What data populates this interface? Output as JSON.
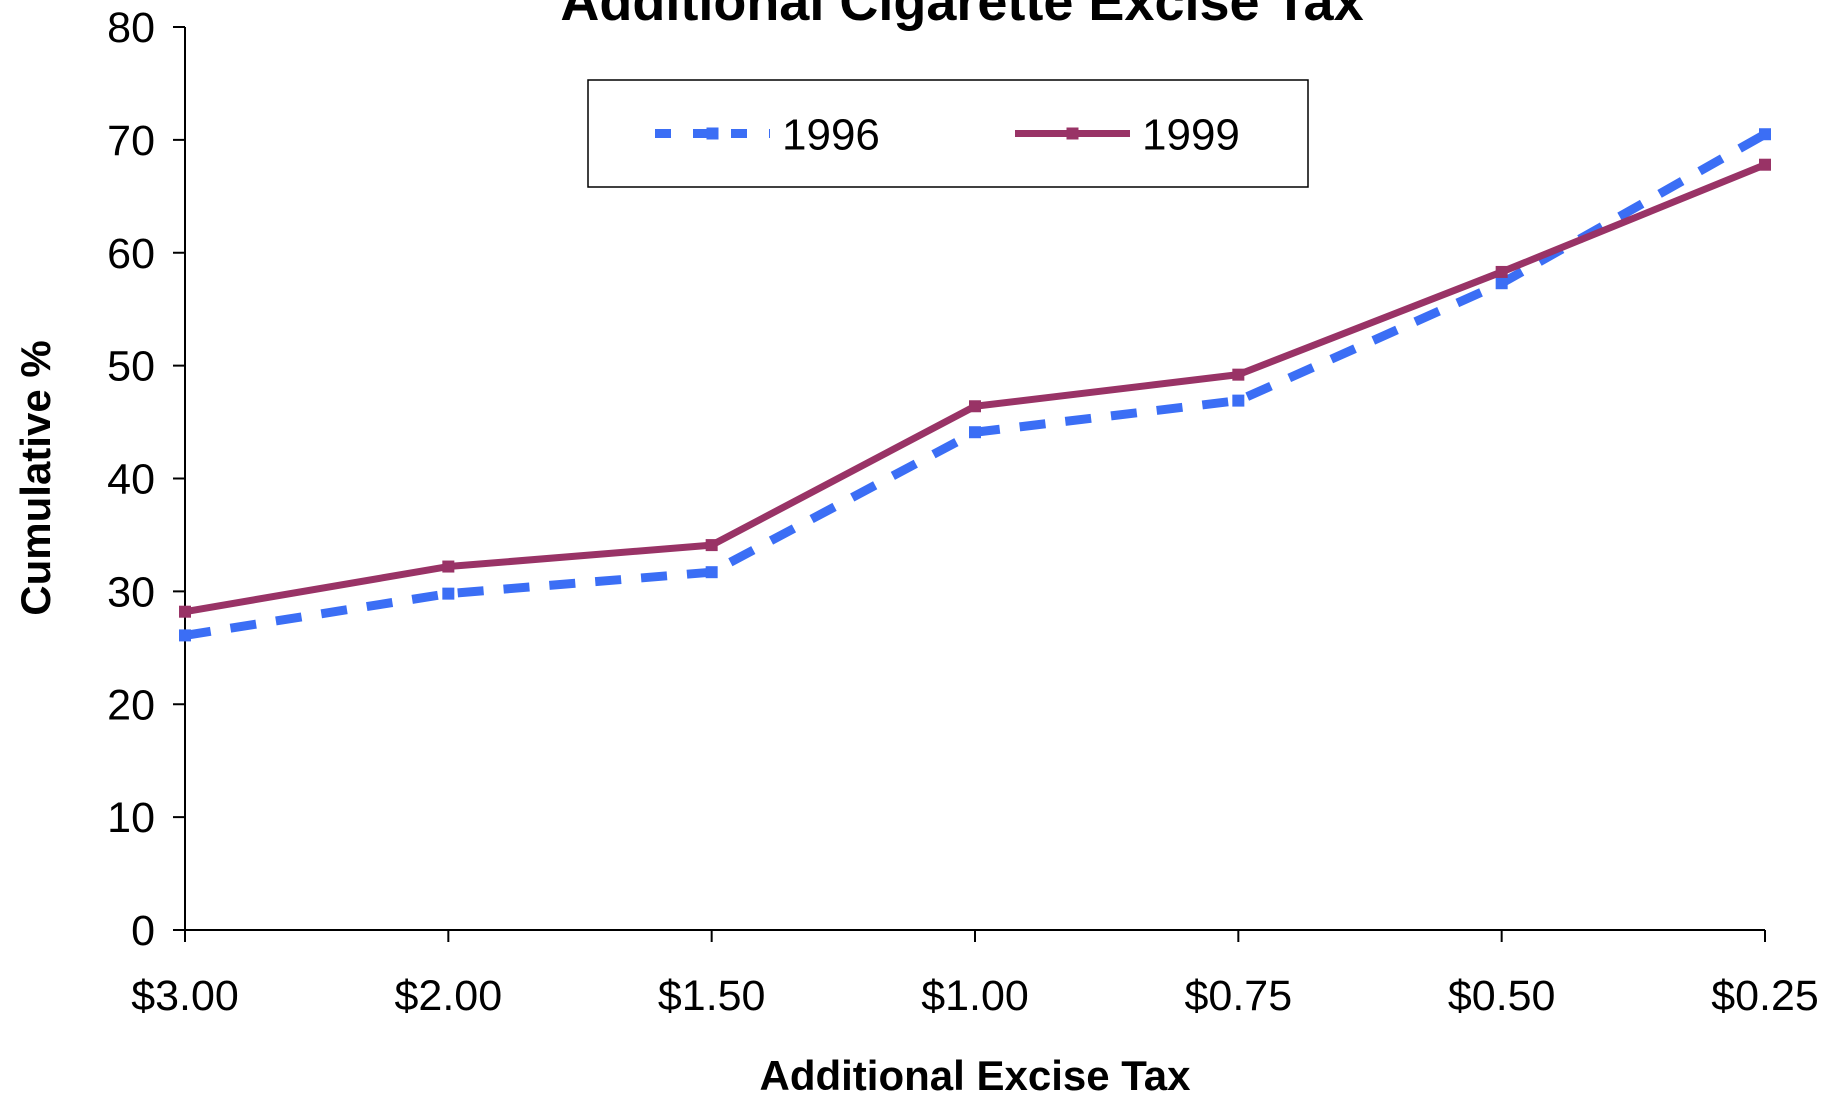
{
  "chart_data": {
    "type": "line",
    "title": "Additional Cigarette Excise Tax",
    "xlabel": "Additional Excise Tax",
    "ylabel": "Cumulative %",
    "categories": [
      "$3.00",
      "$2.00",
      "$1.50",
      "$1.00",
      "$0.75",
      "$0.50",
      "$0.25"
    ],
    "yticks": [
      "0",
      "10",
      "20",
      "30",
      "40",
      "50",
      "60",
      "70",
      "80"
    ],
    "ylim": [
      0,
      80
    ],
    "grid": false,
    "legend_position": "top-center",
    "series": [
      {
        "name": "1996",
        "style": "dashed",
        "color": "#3b6ef5",
        "values": [
          26.1,
          29.8,
          31.7,
          44.1,
          46.9,
          57.3,
          70.5
        ]
      },
      {
        "name": "1999",
        "style": "solid",
        "color": "#993366",
        "values": [
          28.2,
          32.2,
          34.1,
          46.4,
          49.2,
          58.3,
          67.8
        ]
      }
    ]
  }
}
